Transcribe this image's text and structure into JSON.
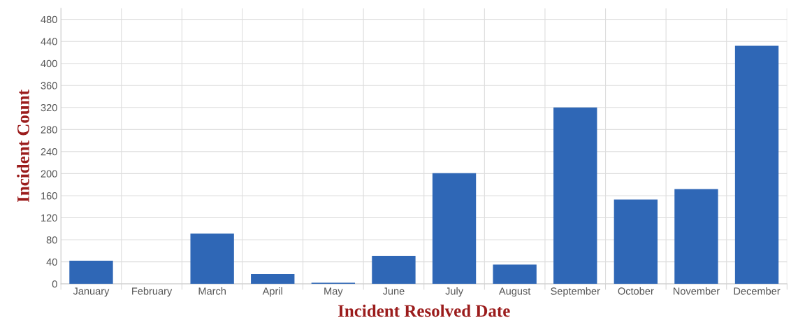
{
  "chart_data": {
    "type": "bar",
    "xlabel": "Incident Resolved Date",
    "ylabel": "Incident Count",
    "categories": [
      "January",
      "February",
      "March",
      "April",
      "May",
      "June",
      "July",
      "August",
      "September",
      "October",
      "November",
      "December"
    ],
    "values": [
      42,
      0,
      91,
      18,
      2,
      51,
      201,
      35,
      320,
      153,
      172,
      432
    ],
    "color": "#2f67b6",
    "ylim": [
      0,
      500
    ],
    "yticks": [
      0,
      40,
      80,
      120,
      160,
      200,
      240,
      280,
      320,
      360,
      400,
      440,
      480
    ],
    "grid": true,
    "legend": false
  }
}
